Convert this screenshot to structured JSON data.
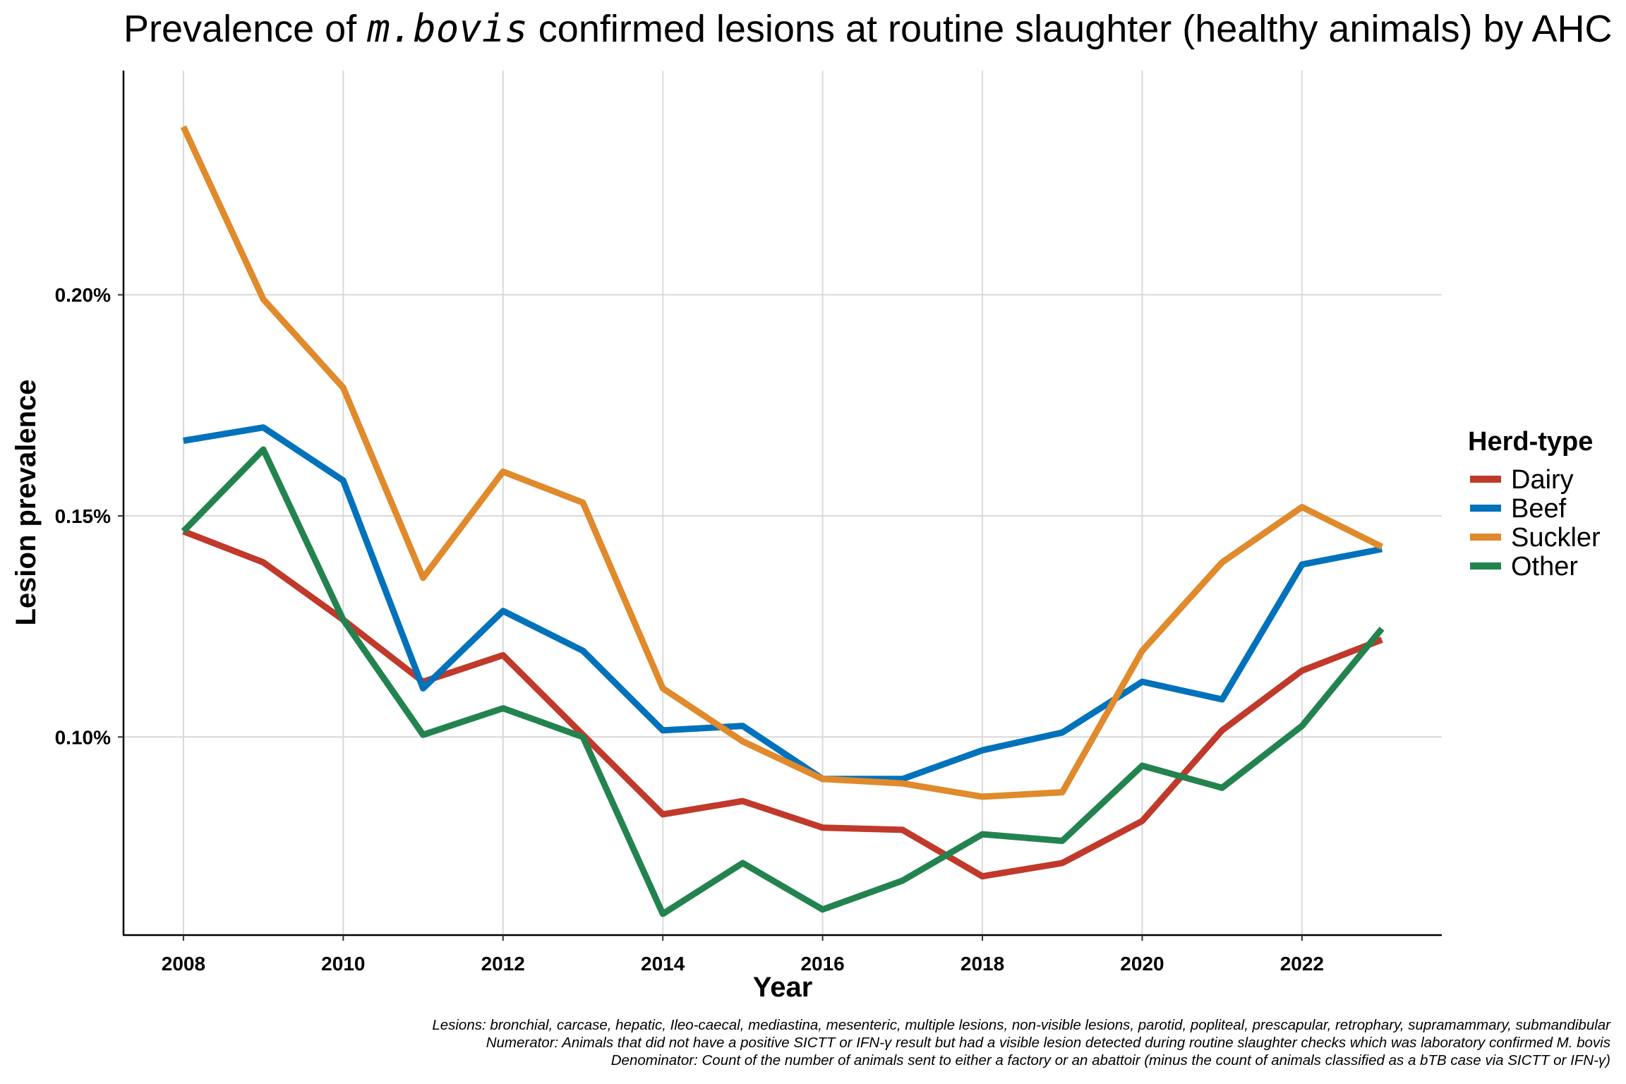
{
  "chart_data": {
    "type": "line",
    "title": {
      "prefix": "Prevalence of ",
      "italic": "m.bovis",
      "suffix": " confirmed lesions at routine slaughter (healthy animals) by AHC"
    },
    "xlabel": "Year",
    "ylabel": "Lesion prevalence",
    "x": [
      2008,
      2009,
      2010,
      2011,
      2012,
      2013,
      2014,
      2015,
      2016,
      2017,
      2018,
      2019,
      2020,
      2021,
      2022,
      2023
    ],
    "xlim": [
      2007.25,
      2023.75
    ],
    "ylim": [
      0.0552,
      0.2507
    ],
    "x_ticks": [
      2008,
      2010,
      2012,
      2014,
      2016,
      2018,
      2020,
      2022
    ],
    "x_tick_labels": [
      "2008",
      "2010",
      "2012",
      "2014",
      "2016",
      "2018",
      "2020",
      "2022"
    ],
    "y_ticks": [
      0.1,
      0.15,
      0.2
    ],
    "y_tick_labels": [
      "0.10%",
      "0.15%",
      "0.20%"
    ],
    "grid": true,
    "legend": {
      "title": "Herd-type",
      "position": "right"
    },
    "series": [
      {
        "name": "Dairy",
        "color": "#C0392B",
        "values": [
          0.1465,
          0.1395,
          0.1265,
          0.1125,
          0.1185,
          0.1005,
          0.0825,
          0.0855,
          0.0795,
          0.079,
          0.0685,
          0.0715,
          0.081,
          0.1015,
          0.115,
          0.122
        ]
      },
      {
        "name": "Beef",
        "color": "#0072BB",
        "values": [
          0.167,
          0.17,
          0.158,
          0.111,
          0.1285,
          0.1195,
          0.1015,
          0.1025,
          0.0905,
          0.0905,
          0.097,
          0.101,
          0.1125,
          0.1085,
          0.139,
          0.1425
        ]
      },
      {
        "name": "Suckler",
        "color": "#E08A2C",
        "values": [
          0.238,
          0.199,
          0.179,
          0.136,
          0.16,
          0.153,
          0.111,
          0.099,
          0.0905,
          0.0895,
          0.0865,
          0.0875,
          0.1195,
          0.1395,
          0.152,
          0.143
        ]
      },
      {
        "name": "Other",
        "color": "#23834F",
        "values": [
          0.1465,
          0.165,
          0.1265,
          0.1005,
          0.1065,
          0.1,
          0.06,
          0.0715,
          0.061,
          0.0675,
          0.078,
          0.0765,
          0.0935,
          0.0885,
          0.1025,
          0.1245
        ]
      }
    ],
    "caption_lines": [
      "Lesions: bronchial, carcase, hepatic, Ileo-caecal, mediastina, mesenteric, multiple lesions, non-visible lesions, parotid, popliteal, prescapular, retrophary, supramammary, submandibular",
      "Numerator: Animals that did not have a positive SICTT or IFN-γ result but had a visible lesion detected during routine slaughter checks which was laboratory confirmed M. bovis",
      "Denominator: Count of the number of animals sent to either a factory or an abattoir (minus the count of animals classified as a bTB case via SICTT or IFN-γ)"
    ]
  }
}
